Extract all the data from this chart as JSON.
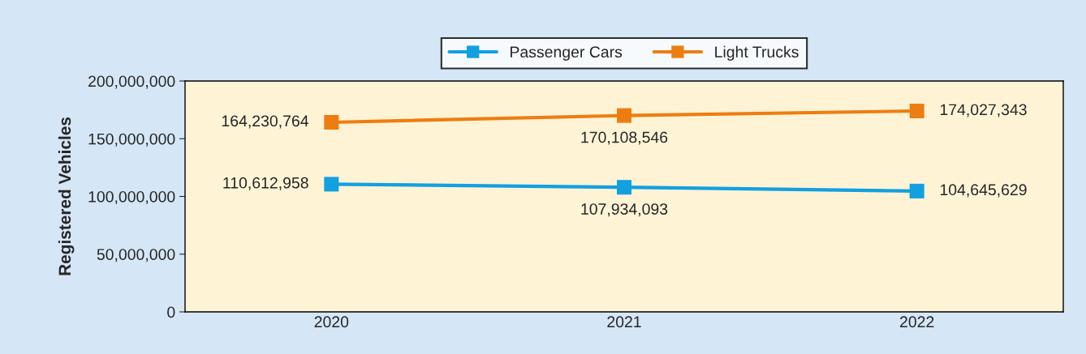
{
  "chart_data": {
    "type": "line",
    "ylabel": "Registered Vehicles",
    "categories": [
      "2020",
      "2021",
      "2022"
    ],
    "series": [
      {
        "name": "Passenger Cars",
        "color": "#12a0e0",
        "values": [
          110612958,
          107934093,
          104645629
        ],
        "value_labels": [
          "110,612,958",
          "107,934,093",
          "104,645,629"
        ]
      },
      {
        "name": "Light Trucks",
        "color": "#ee7d11",
        "values": [
          164230764,
          170108546,
          174027343
        ],
        "value_labels": [
          "164,230,764",
          "170,108,546",
          "174,027,343"
        ]
      }
    ],
    "ylim": [
      0,
      200000000
    ],
    "yticks": [
      {
        "value": 0,
        "label": "0"
      },
      {
        "value": 50000000,
        "label": "50,000,000"
      },
      {
        "value": 100000000,
        "label": "100,000,000"
      },
      {
        "value": 150000000,
        "label": "150,000,000"
      },
      {
        "value": 200000000,
        "label": "200,000,000"
      }
    ],
    "legend": "top",
    "marker": "square",
    "line_style": "solid",
    "grid": false
  }
}
